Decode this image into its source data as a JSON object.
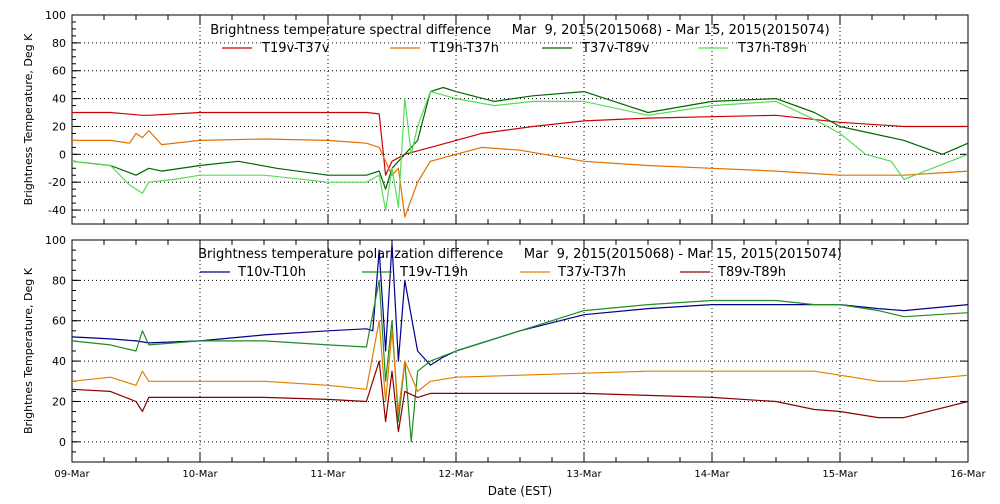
{
  "chart_data": [
    {
      "type": "line",
      "title": "Brightness temperature spectral difference     Mar  9, 2015(2015068) - Mar 15, 2015(2015074)",
      "ylabel": "Brightness Temperature, Deg K",
      "xlabel": "",
      "ylim": [
        -50,
        100
      ],
      "yticks": [
        -40,
        -20,
        0,
        20,
        40,
        60,
        80,
        100
      ],
      "xlim": [
        0,
        7
      ],
      "grid": true,
      "legend_position": "top",
      "series": [
        {
          "name": "T19v-T37v",
          "color": "#cc0000",
          "x": [
            0,
            0.3,
            0.55,
            0.6,
            1.0,
            2.0,
            2.3,
            2.4,
            2.45,
            2.5,
            2.6,
            2.8,
            3.0,
            3.2,
            3.6,
            4.0,
            4.5,
            5.0,
            5.5,
            6.0,
            6.5,
            7.0
          ],
          "y": [
            30,
            30,
            28,
            28,
            30,
            30,
            30,
            29,
            -15,
            -5,
            0,
            5,
            10,
            15,
            20,
            24,
            26,
            27,
            28,
            23,
            20,
            20
          ]
        },
        {
          "name": "T19h-T37h",
          "color": "#e07000",
          "x": [
            0,
            0.3,
            0.45,
            0.5,
            0.55,
            0.6,
            0.7,
            0.9,
            1.0,
            1.5,
            2.0,
            2.3,
            2.4,
            2.45,
            2.5,
            2.55,
            2.6,
            2.7,
            2.8,
            3.0,
            3.2,
            3.5,
            4.0,
            4.5,
            5.0,
            5.5,
            6.0,
            6.5,
            7.0
          ],
          "y": [
            10,
            10,
            8,
            15,
            12,
            17,
            7,
            9,
            10,
            11,
            10,
            8,
            5,
            -5,
            -15,
            -10,
            -45,
            -20,
            -5,
            0,
            5,
            3,
            -5,
            -8,
            -10,
            -12,
            -15,
            -15,
            -12
          ]
        },
        {
          "name": "T37v-T89v",
          "color": "#006400",
          "x": [
            0,
            0.3,
            0.5,
            0.6,
            0.7,
            1.0,
            1.3,
            1.6,
            2.0,
            2.3,
            2.4,
            2.45,
            2.5,
            2.6,
            2.7,
            2.8,
            2.9,
            3.0,
            3.3,
            3.6,
            4.0,
            4.5,
            5.0,
            5.5,
            5.8,
            6.0,
            6.5,
            6.8,
            7.0
          ],
          "y": [
            -5,
            -8,
            -15,
            -10,
            -12,
            -8,
            -5,
            -10,
            -15,
            -15,
            -12,
            -25,
            -10,
            0,
            10,
            45,
            48,
            45,
            38,
            42,
            45,
            30,
            38,
            40,
            30,
            20,
            10,
            0,
            8
          ]
        },
        {
          "name": "T37h-T89h",
          "color": "#55dd55",
          "x": [
            0,
            0.3,
            0.45,
            0.55,
            0.6,
            0.8,
            1.0,
            1.5,
            2.0,
            2.3,
            2.4,
            2.45,
            2.5,
            2.55,
            2.6,
            2.65,
            2.7,
            2.8,
            3.0,
            3.3,
            3.6,
            4.0,
            4.5,
            5.0,
            5.5,
            5.8,
            6.0,
            6.2,
            6.4,
            6.5,
            7.0
          ],
          "y": [
            -5,
            -8,
            -22,
            -28,
            -20,
            -18,
            -15,
            -15,
            -20,
            -20,
            -15,
            -40,
            -10,
            -38,
            40,
            0,
            20,
            45,
            40,
            35,
            38,
            38,
            28,
            35,
            38,
            25,
            15,
            0,
            -5,
            -18,
            0
          ]
        }
      ]
    },
    {
      "type": "line",
      "title": "Brightness temperature polarization difference     Mar  9, 2015(2015068) - Mar 15, 2015(2015074)",
      "ylabel": "Brightnes Temperature, Deg K",
      "xlabel": "Date (EST)",
      "ylim": [
        -10,
        100
      ],
      "yticks": [
        0,
        20,
        40,
        60,
        80,
        100
      ],
      "xlim": [
        0,
        7
      ],
      "xtick_labels": [
        "09-Mar",
        "10-Mar",
        "11-Mar",
        "12-Mar",
        "13-Mar",
        "14-Mar",
        "15-Mar",
        "16-Mar"
      ],
      "grid": true,
      "legend_position": "top",
      "series": [
        {
          "name": "T10v-T10h",
          "color": "#00008b",
          "x": [
            0,
            0.3,
            0.5,
            0.6,
            1.0,
            1.5,
            2.0,
            2.3,
            2.35,
            2.4,
            2.45,
            2.5,
            2.55,
            2.6,
            2.7,
            2.8,
            2.9,
            3.0,
            3.5,
            4.0,
            4.5,
            5.0,
            5.5,
            5.8,
            6.0,
            6.3,
            6.5,
            7.0
          ],
          "y": [
            52,
            51,
            50,
            49,
            50,
            53,
            55,
            56,
            55,
            95,
            45,
            98,
            40,
            80,
            45,
            38,
            42,
            45,
            55,
            63,
            66,
            68,
            68,
            68,
            68,
            66,
            65,
            68
          ]
        },
        {
          "name": "T19v-T19h",
          "color": "#228b22",
          "x": [
            0,
            0.3,
            0.5,
            0.55,
            0.6,
            1.0,
            1.5,
            2.0,
            2.3,
            2.4,
            2.45,
            2.5,
            2.55,
            2.6,
            2.65,
            2.7,
            2.8,
            3.0,
            3.5,
            4.0,
            4.5,
            5.0,
            5.5,
            5.8,
            6.0,
            6.3,
            6.5,
            7.0
          ],
          "y": [
            50,
            48,
            45,
            55,
            48,
            50,
            50,
            48,
            47,
            80,
            30,
            60,
            10,
            40,
            0,
            35,
            40,
            45,
            55,
            65,
            68,
            70,
            70,
            68,
            68,
            65,
            62,
            64
          ]
        },
        {
          "name": "T37v-T37h",
          "color": "#e08000",
          "x": [
            0,
            0.3,
            0.5,
            0.55,
            0.6,
            1.0,
            1.5,
            2.0,
            2.3,
            2.4,
            2.45,
            2.5,
            2.55,
            2.6,
            2.7,
            2.8,
            3.0,
            3.5,
            4.0,
            4.5,
            5.0,
            5.5,
            5.8,
            6.0,
            6.3,
            6.5,
            7.0
          ],
          "y": [
            30,
            32,
            28,
            35,
            30,
            30,
            30,
            28,
            26,
            60,
            20,
            55,
            15,
            40,
            25,
            30,
            32,
            33,
            34,
            35,
            35,
            35,
            35,
            33,
            30,
            30,
            33
          ]
        },
        {
          "name": "T89v-T89h",
          "color": "#8b0000",
          "x": [
            0,
            0.3,
            0.5,
            0.55,
            0.6,
            1.0,
            1.5,
            2.0,
            2.3,
            2.4,
            2.45,
            2.5,
            2.55,
            2.6,
            2.7,
            2.8,
            3.0,
            3.5,
            4.0,
            4.5,
            5.0,
            5.5,
            5.8,
            6.0,
            6.3,
            6.5,
            7.0
          ],
          "y": [
            26,
            25,
            20,
            15,
            22,
            22,
            22,
            21,
            20,
            40,
            10,
            35,
            5,
            25,
            22,
            24,
            24,
            24,
            24,
            23,
            22,
            20,
            16,
            15,
            12,
            12,
            20
          ]
        }
      ]
    }
  ]
}
